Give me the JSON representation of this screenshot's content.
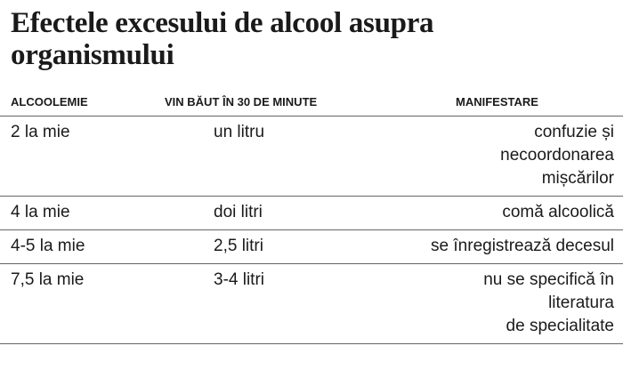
{
  "header": {
    "title": "Efectele excesului de alcool asupra organismului"
  },
  "table": {
    "columns": [
      "ALCOOLEMIE",
      "VIN BĂUT ÎN 30 DE MINUTE",
      "MANIFESTARE"
    ],
    "rows": [
      [
        "2 la mie",
        "un litru",
        [
          "confuzie și",
          "necoordonarea",
          "mișcărilor"
        ]
      ],
      [
        "4 la mie",
        "doi litri",
        [
          "comă alcoolică"
        ]
      ],
      [
        "4-5 la mie",
        "2,5 litri",
        [
          "se înregistrează decesul"
        ]
      ],
      [
        "7,5 la mie",
        "3-4 litri",
        [
          "nu se specifică în",
          "literatura",
          "de specialitate"
        ]
      ]
    ]
  }
}
